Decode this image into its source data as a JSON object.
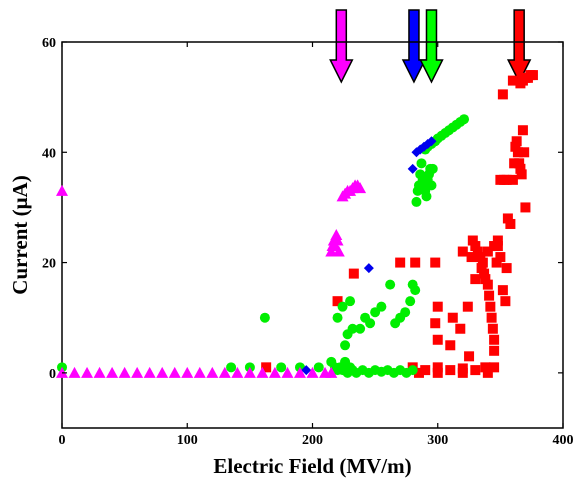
{
  "chart_data": {
    "type": "scatter",
    "xlabel": "Electric Field (MV/m)",
    "ylabel": "Current (μA)",
    "xlim": [
      0,
      400
    ],
    "ylim": [
      -10,
      60
    ],
    "x_ticks": [
      "0",
      "100",
      "200",
      "300",
      "400"
    ],
    "y_ticks": [
      "0",
      "20",
      "40",
      "60"
    ],
    "x_tick_values": [
      0,
      100,
      200,
      300,
      400
    ],
    "y_tick_values": [
      0,
      20,
      40,
      60
    ],
    "grid": false,
    "series": [
      {
        "color": "#ff00ff",
        "marker": "triangle",
        "points": [
          [
            0,
            33
          ],
          [
            0,
            0
          ],
          [
            10,
            0
          ],
          [
            20,
            0
          ],
          [
            30,
            0
          ],
          [
            40,
            0
          ],
          [
            50,
            0
          ],
          [
            60,
            0
          ],
          [
            70,
            0
          ],
          [
            80,
            0
          ],
          [
            90,
            0
          ],
          [
            100,
            0
          ],
          [
            110,
            0
          ],
          [
            120,
            0
          ],
          [
            130,
            0
          ],
          [
            140,
            0
          ],
          [
            150,
            0
          ],
          [
            160,
            0
          ],
          [
            170,
            0
          ],
          [
            180,
            0
          ],
          [
            190,
            0
          ],
          [
            200,
            0
          ],
          [
            210,
            0
          ],
          [
            215,
            0
          ],
          [
            215,
            22
          ],
          [
            216,
            23
          ],
          [
            217,
            24
          ],
          [
            218,
            23
          ],
          [
            219,
            25
          ],
          [
            220,
            24
          ],
          [
            221,
            22
          ],
          [
            224,
            32
          ],
          [
            226,
            32.5
          ],
          [
            228,
            33
          ],
          [
            230,
            33
          ],
          [
            232,
            33.5
          ],
          [
            234,
            34
          ],
          [
            236,
            34
          ],
          [
            238,
            33.5
          ]
        ]
      },
      {
        "color": "#ff0000",
        "marker": "square",
        "points": [
          [
            163,
            1
          ],
          [
            220,
            13
          ],
          [
            233,
            18
          ],
          [
            270,
            20
          ],
          [
            282,
            20
          ],
          [
            280,
            1
          ],
          [
            290,
            0.5
          ],
          [
            300,
            1
          ],
          [
            310,
            0.5
          ],
          [
            320,
            0.8
          ],
          [
            330,
            0.5
          ],
          [
            338,
            1
          ],
          [
            345,
            1
          ],
          [
            285,
            0
          ],
          [
            300,
            0
          ],
          [
            320,
            0
          ],
          [
            340,
            0
          ],
          [
            298,
            20
          ],
          [
            300,
            6
          ],
          [
            298,
            9
          ],
          [
            300,
            12
          ],
          [
            310,
            5
          ],
          [
            312,
            10
          ],
          [
            318,
            8
          ],
          [
            324,
            12
          ],
          [
            325,
            3
          ],
          [
            320,
            22
          ],
          [
            327,
            21
          ],
          [
            328,
            24
          ],
          [
            330,
            23
          ],
          [
            332,
            22
          ],
          [
            334,
            21
          ],
          [
            336,
            20
          ],
          [
            337,
            18
          ],
          [
            338,
            17
          ],
          [
            340,
            16
          ],
          [
            341,
            14
          ],
          [
            342,
            12
          ],
          [
            343,
            10
          ],
          [
            344,
            8
          ],
          [
            345,
            6
          ],
          [
            345,
            4
          ],
          [
            330,
            17
          ],
          [
            335,
            19
          ],
          [
            340,
            22
          ],
          [
            345,
            23
          ],
          [
            348,
            23
          ],
          [
            350,
            21
          ],
          [
            352,
            15
          ],
          [
            354,
            13
          ],
          [
            355,
            19
          ],
          [
            347,
            20
          ],
          [
            348,
            24
          ],
          [
            350,
            35
          ],
          [
            353,
            35
          ],
          [
            355,
            35
          ],
          [
            356,
            28
          ],
          [
            358,
            27
          ],
          [
            360,
            35
          ],
          [
            361,
            38
          ],
          [
            362,
            41
          ],
          [
            363,
            42
          ],
          [
            364,
            40
          ],
          [
            365,
            38
          ],
          [
            366,
            37
          ],
          [
            367,
            36
          ],
          [
            368,
            44
          ],
          [
            369,
            40
          ],
          [
            370,
            30
          ],
          [
            352,
            50.5
          ],
          [
            360,
            53
          ],
          [
            366,
            52.5
          ],
          [
            368,
            53
          ],
          [
            370,
            53.5
          ],
          [
            372,
            53.5
          ],
          [
            374,
            54
          ],
          [
            376,
            54
          ]
        ]
      },
      {
        "color": "#00ee00",
        "marker": "circle",
        "points": [
          [
            0,
            1
          ],
          [
            135,
            1
          ],
          [
            150,
            1
          ],
          [
            162,
            10
          ],
          [
            175,
            1
          ],
          [
            190,
            1
          ],
          [
            205,
            1
          ],
          [
            215,
            2
          ],
          [
            218,
            1
          ],
          [
            220,
            0.5
          ],
          [
            222,
            1
          ],
          [
            224,
            0.5
          ],
          [
            226,
            2
          ],
          [
            228,
            0
          ],
          [
            230,
            1
          ],
          [
            232,
            0.5
          ],
          [
            235,
            0
          ],
          [
            240,
            0.5
          ],
          [
            245,
            0
          ],
          [
            250,
            0.5
          ],
          [
            255,
            0.2
          ],
          [
            260,
            0.5
          ],
          [
            265,
            0
          ],
          [
            270,
            0.5
          ],
          [
            275,
            0
          ],
          [
            280,
            0.5
          ],
          [
            226,
            5
          ],
          [
            228,
            7
          ],
          [
            232,
            8
          ],
          [
            238,
            8
          ],
          [
            242,
            10
          ],
          [
            246,
            9
          ],
          [
            250,
            11
          ],
          [
            255,
            12
          ],
          [
            262,
            16
          ],
          [
            266,
            9
          ],
          [
            270,
            10
          ],
          [
            274,
            11
          ],
          [
            278,
            13
          ],
          [
            280,
            16
          ],
          [
            282,
            15
          ],
          [
            220,
            10
          ],
          [
            224,
            12
          ],
          [
            230,
            13
          ],
          [
            283,
            31
          ],
          [
            284,
            33
          ],
          [
            285,
            34
          ],
          [
            286,
            36
          ],
          [
            287,
            38
          ],
          [
            288,
            35
          ],
          [
            289,
            34
          ],
          [
            290,
            33
          ],
          [
            291,
            32
          ],
          [
            292,
            35
          ],
          [
            293,
            36
          ],
          [
            294,
            37
          ],
          [
            295,
            34
          ],
          [
            296,
            37
          ],
          [
            290,
            40.5
          ],
          [
            292,
            41
          ],
          [
            295,
            41.5
          ],
          [
            298,
            42
          ],
          [
            300,
            42.5
          ],
          [
            303,
            43
          ],
          [
            306,
            43.5
          ],
          [
            309,
            44
          ],
          [
            312,
            44.5
          ],
          [
            315,
            45
          ],
          [
            318,
            45.5
          ],
          [
            321,
            46
          ]
        ]
      },
      {
        "color": "#0000ee",
        "marker": "diamond",
        "points": [
          [
            195,
            0.5
          ],
          [
            245,
            19
          ],
          [
            280,
            37
          ],
          [
            283,
            40
          ],
          [
            286,
            40.5
          ],
          [
            289,
            41
          ],
          [
            292,
            41.5
          ],
          [
            295,
            42
          ]
        ]
      }
    ],
    "arrows": [
      {
        "color": "#ff00ff",
        "x": 223
      },
      {
        "color": "#0000ff",
        "x": 281
      },
      {
        "color": "#00ff00",
        "x": 295
      },
      {
        "color": "#ff0000",
        "x": 365
      }
    ]
  }
}
